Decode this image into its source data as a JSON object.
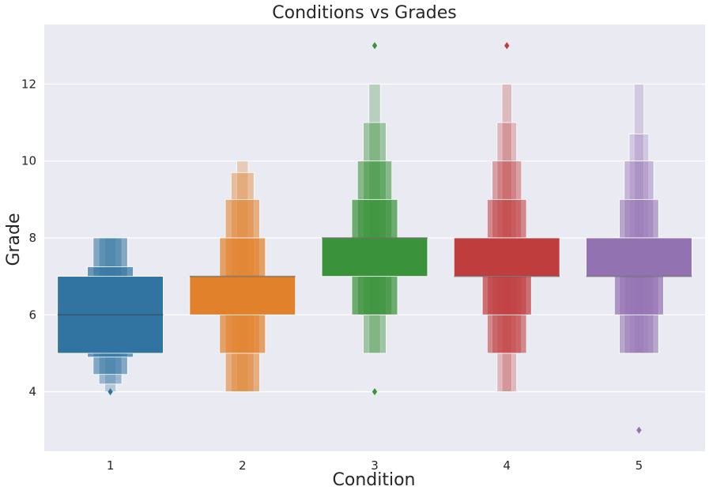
{
  "chart_data": {
    "type": "boxen",
    "title": "Conditions vs Grades",
    "xlabel": "Condition",
    "ylabel": "Grade",
    "categories": [
      "1",
      "2",
      "3",
      "4",
      "5"
    ],
    "ylim": [
      2.45,
      13.55
    ],
    "yticks": [
      4,
      6,
      8,
      10,
      12
    ],
    "grid": true,
    "background": "#eaeaf2",
    "colors": [
      "#3274a1",
      "#e1812c",
      "#3a923a",
      "#c03d3e",
      "#9372b2"
    ],
    "series": [
      {
        "condition": "1",
        "median": 6,
        "levels": [
          [
            5,
            7
          ],
          [
            4.9,
            7.25
          ],
          [
            4.45,
            8
          ],
          [
            4.2,
            8
          ],
          [
            4,
            8
          ]
        ],
        "outliers": [
          4
        ]
      },
      {
        "condition": "2",
        "median": 7,
        "levels": [
          [
            6,
            7
          ],
          [
            5,
            8
          ],
          [
            4,
            9
          ],
          [
            4,
            9.7
          ],
          [
            4,
            10
          ]
        ],
        "outliers": []
      },
      {
        "condition": "3",
        "median": 8,
        "levels": [
          [
            7,
            8
          ],
          [
            6,
            9
          ],
          [
            6,
            10
          ],
          [
            5,
            11
          ],
          [
            5,
            12
          ]
        ],
        "outliers": [
          13,
          4
        ]
      },
      {
        "condition": "4",
        "median": 7,
        "levels": [
          [
            7,
            8
          ],
          [
            6,
            8
          ],
          [
            5,
            9
          ],
          [
            5,
            10
          ],
          [
            4,
            11
          ],
          [
            4,
            12
          ]
        ],
        "outliers": [
          13
        ]
      },
      {
        "condition": "5",
        "median": 7,
        "levels": [
          [
            7,
            8
          ],
          [
            6,
            8
          ],
          [
            5,
            9
          ],
          [
            5,
            10
          ],
          [
            5,
            10.7
          ],
          [
            5,
            12
          ]
        ],
        "outliers": [
          3
        ]
      }
    ]
  }
}
